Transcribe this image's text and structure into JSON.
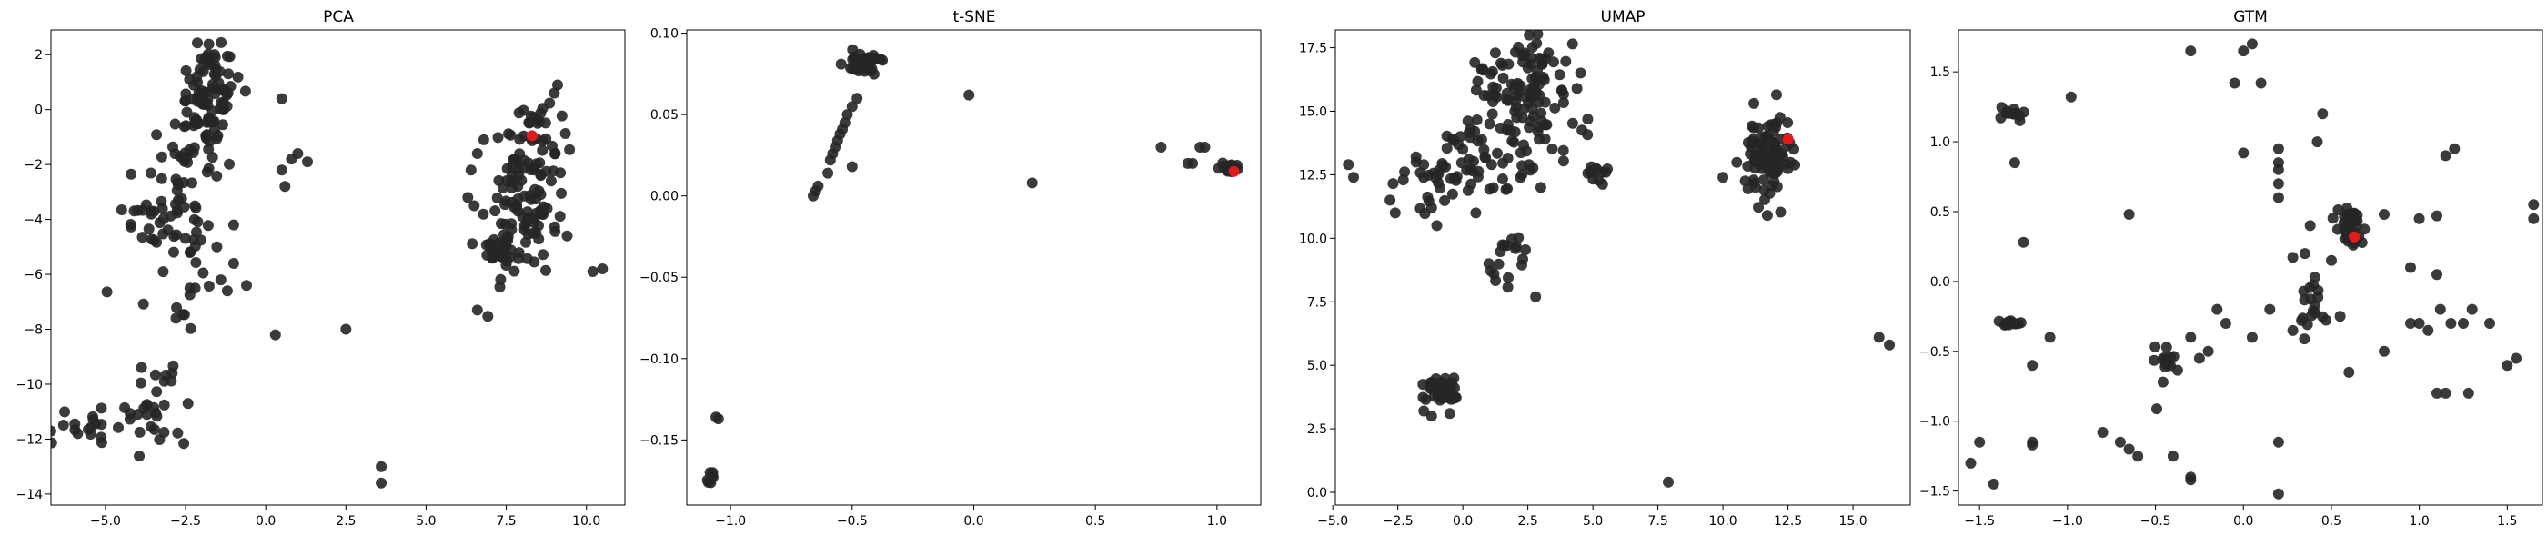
{
  "chart_data": [
    {
      "type": "scatter",
      "title": "PCA",
      "xlim": [
        -6.7,
        11.2
      ],
      "ylim": [
        -14.4,
        2.9
      ],
      "xticks": [
        -5.0,
        -2.5,
        0.0,
        2.5,
        5.0,
        7.5,
        10.0
      ],
      "xtick_labels": [
        "−5.0",
        "−2.5",
        "0.0",
        "2.5",
        "5.0",
        "7.5",
        "10.0"
      ],
      "yticks": [
        2,
        0,
        -2,
        -4,
        -6,
        -8,
        -10,
        -12,
        -14
      ],
      "ytick_labels": [
        "2",
        "0",
        "−2",
        "−4",
        "−6",
        "−8",
        "−10",
        "−12",
        "−14"
      ],
      "point_color": "#262626",
      "highlight_color": "#e31a1c",
      "clusters": [
        {
          "cx": -1.8,
          "cy": 0.5,
          "sx": 0.5,
          "sy": 1.1,
          "n": 95
        },
        {
          "cx": -2.4,
          "cy": -1.9,
          "sx": 0.35,
          "sy": 0.7,
          "n": 14
        },
        {
          "cx": -3.0,
          "cy": -4.2,
          "sx": 0.75,
          "sy": 1.2,
          "n": 65
        },
        {
          "cx": 8.0,
          "cy": -3.8,
          "sx": 0.55,
          "sy": 1.3,
          "n": 95
        },
        {
          "cx": 8.6,
          "cy": -1.1,
          "sx": 0.4,
          "sy": 0.8,
          "n": 30
        },
        {
          "cx": 7.4,
          "cy": -5.0,
          "sx": 0.6,
          "sy": 0.25,
          "n": 30
        },
        {
          "cx": -3.5,
          "cy": -10.8,
          "sx": 0.5,
          "sy": 0.7,
          "n": 30
        },
        {
          "cx": -5.4,
          "cy": -11.6,
          "sx": 0.55,
          "sy": 0.4,
          "n": 18
        }
      ],
      "points": [
        [
          0.5,
          0.4
        ],
        [
          0.5,
          -2.2
        ],
        [
          0.6,
          -2.8
        ],
        [
          1.0,
          -1.6
        ],
        [
          0.8,
          -1.8
        ],
        [
          1.3,
          -1.9
        ],
        [
          6.8,
          -1.1
        ],
        [
          6.6,
          -1.6
        ],
        [
          6.4,
          -2.2
        ],
        [
          6.3,
          -3.2
        ],
        [
          6.5,
          -3.5
        ],
        [
          6.6,
          -7.3
        ],
        [
          0.3,
          -8.2
        ],
        [
          2.5,
          -8.0
        ],
        [
          3.6,
          -13.0
        ],
        [
          3.6,
          -13.6
        ],
        [
          10.2,
          -5.9
        ],
        [
          10.5,
          -5.8
        ],
        [
          9.1,
          0.9
        ],
        [
          9.0,
          0.6
        ],
        [
          9.4,
          -4.6
        ],
        [
          8.9,
          -2.6
        ],
        [
          -1.0,
          -4.2
        ],
        [
          -1.2,
          -6.6
        ],
        [
          -0.6,
          -6.4
        ],
        [
          -1.0,
          -5.6
        ],
        [
          -2.2,
          -6.5
        ],
        [
          -1.4,
          -6.2
        ],
        [
          -2.8,
          -7.6
        ]
      ],
      "highlight": [
        [
          8.3,
          -0.95
        ]
      ]
    },
    {
      "type": "scatter",
      "title": "t-SNE",
      "xlim": [
        -1.18,
        1.18
      ],
      "ylim": [
        -0.19,
        0.102
      ],
      "xticks": [
        -1.0,
        -0.5,
        0.0,
        0.5,
        1.0
      ],
      "xtick_labels": [
        "−1.0",
        "−0.5",
        "0.0",
        "0.5",
        "1.0"
      ],
      "yticks": [
        0.1,
        0.05,
        0.0,
        -0.05,
        -0.1,
        -0.15
      ],
      "ytick_labels": [
        "0.10",
        "0.05",
        "0.00",
        "−0.05",
        "−0.10",
        "−0.15"
      ],
      "point_color": "#262626",
      "highlight_color": "#e31a1c",
      "clusters": [
        {
          "cx": -0.45,
          "cy": 0.082,
          "sx": 0.04,
          "sy": 0.004,
          "n": 50
        },
        {
          "cx": 1.05,
          "cy": 0.017,
          "sx": 0.02,
          "sy": 0.0015,
          "n": 18
        },
        {
          "cx": -1.08,
          "cy": -0.174,
          "sx": 0.01,
          "sy": 0.0015,
          "n": 10
        }
      ],
      "points": [
        [
          -0.66,
          0.0
        ],
        [
          -0.65,
          0.003
        ],
        [
          -0.64,
          0.006
        ],
        [
          -0.6,
          0.014
        ],
        [
          -0.59,
          0.022
        ],
        [
          -0.58,
          0.026
        ],
        [
          -0.57,
          0.03
        ],
        [
          -0.56,
          0.034
        ],
        [
          -0.55,
          0.038
        ],
        [
          -0.54,
          0.041
        ],
        [
          -0.53,
          0.045
        ],
        [
          -0.52,
          0.05
        ],
        [
          -0.5,
          0.055
        ],
        [
          -0.48,
          0.06
        ],
        [
          -0.5,
          0.018
        ],
        [
          -0.02,
          0.062
        ],
        [
          0.24,
          0.008
        ],
        [
          0.77,
          0.03
        ],
        [
          0.88,
          0.02
        ],
        [
          0.9,
          0.02
        ],
        [
          0.93,
          0.03
        ],
        [
          0.95,
          0.03
        ],
        [
          -1.06,
          -0.136
        ],
        [
          -1.05,
          -0.137
        ]
      ],
      "highlight": [
        [
          1.07,
          0.015
        ]
      ]
    },
    {
      "type": "scatter",
      "title": "UMAP",
      "xlim": [
        -4.9,
        17.2
      ],
      "ylim": [
        -0.5,
        18.2
      ],
      "xticks": [
        -5.0,
        -2.5,
        0.0,
        2.5,
        5.0,
        7.5,
        10.0,
        12.5,
        15.0
      ],
      "xtick_labels": [
        "−5.0",
        "−2.5",
        "0.0",
        "2.5",
        "5.0",
        "7.5",
        "10.0",
        "12.5",
        "15.0"
      ],
      "yticks": [
        17.5,
        15.0,
        12.5,
        10.0,
        7.5,
        5.0,
        2.5,
        0.0
      ],
      "ytick_labels": [
        "17.5",
        "15.0",
        "12.5",
        "10.0",
        "7.5",
        "5.0",
        "2.5",
        "0.0"
      ],
      "point_color": "#262626",
      "highlight_color": "#e31a1c",
      "clusters": [
        {
          "cx": 2.2,
          "cy": 15.8,
          "sx": 0.9,
          "sy": 1.1,
          "n": 110
        },
        {
          "cx": 1.4,
          "cy": 13.0,
          "sx": 1.2,
          "sy": 0.9,
          "n": 45
        },
        {
          "cx": -1.0,
          "cy": 12.2,
          "sx": 0.9,
          "sy": 0.9,
          "n": 30
        },
        {
          "cx": 1.7,
          "cy": 9.5,
          "sx": 0.5,
          "sy": 0.7,
          "n": 16
        },
        {
          "cx": 11.7,
          "cy": 13.2,
          "sx": 0.5,
          "sy": 1.0,
          "n": 95
        },
        {
          "cx": -0.8,
          "cy": 3.9,
          "sx": 0.35,
          "sy": 0.3,
          "n": 40
        },
        {
          "cx": 4.9,
          "cy": 12.8,
          "sx": 0.45,
          "sy": 0.35,
          "n": 12
        }
      ],
      "points": [
        [
          -4.4,
          12.9
        ],
        [
          -4.2,
          12.4
        ],
        [
          -2.8,
          11.5
        ],
        [
          -2.6,
          11.0
        ],
        [
          -1.8,
          13.0
        ],
        [
          -1.5,
          12.9
        ],
        [
          -1.2,
          11.2
        ],
        [
          -1.0,
          10.5
        ],
        [
          0.0,
          13.5
        ],
        [
          0.5,
          11.0
        ],
        [
          2.8,
          7.7
        ],
        [
          7.9,
          0.4
        ],
        [
          16.0,
          6.1
        ],
        [
          16.4,
          5.8
        ],
        [
          5.5,
          12.6
        ],
        [
          10.0,
          12.4
        ],
        [
          -1.5,
          3.2
        ],
        [
          -1.2,
          3.0
        ],
        [
          -0.5,
          3.1
        ],
        [
          -1.8,
          13.2
        ],
        [
          3.0,
          12.0
        ],
        [
          1.2,
          8.6
        ],
        [
          1.0,
          9.0
        ],
        [
          0.3,
          14.3
        ]
      ],
      "highlight": [
        [
          12.5,
          13.9
        ]
      ]
    },
    {
      "type": "scatter",
      "title": "GTM",
      "xlim": [
        -1.62,
        1.7
      ],
      "ylim": [
        -1.6,
        1.8
      ],
      "xticks": [
        -1.5,
        -1.0,
        -0.5,
        0.0,
        0.5,
        1.0,
        1.5
      ],
      "xtick_labels": [
        "−1.5",
        "−1.0",
        "−0.5",
        "0.0",
        "0.5",
        "1.0",
        "1.5"
      ],
      "yticks": [
        1.5,
        1.0,
        0.5,
        0.0,
        -0.5,
        -1.0,
        -1.5
      ],
      "ytick_labels": [
        "1.5",
        "1.0",
        "0.5",
        "0.0",
        "−0.5",
        "−1.0",
        "−1.5"
      ],
      "point_color": "#262626",
      "highlight_color": "#e31a1c",
      "clusters": [
        {
          "cx": 0.6,
          "cy": 0.42,
          "sx": 0.04,
          "sy": 0.05,
          "n": 30
        },
        {
          "cx": 0.62,
          "cy": 0.3,
          "sx": 0.03,
          "sy": 0.03,
          "n": 12
        },
        {
          "cx": -1.33,
          "cy": 1.2,
          "sx": 0.04,
          "sy": 0.04,
          "n": 12
        },
        {
          "cx": -1.32,
          "cy": -0.3,
          "sx": 0.05,
          "sy": 0.01,
          "n": 12
        },
        {
          "cx": 0.38,
          "cy": -0.2,
          "sx": 0.05,
          "sy": 0.15,
          "n": 20
        },
        {
          "cx": -0.42,
          "cy": -0.6,
          "sx": 0.04,
          "sy": 0.1,
          "n": 14
        }
      ],
      "points": [
        [
          -1.55,
          -1.3
        ],
        [
          -1.5,
          -1.15
        ],
        [
          -1.42,
          -1.45
        ],
        [
          -1.2,
          -1.15
        ],
        [
          -1.2,
          -1.17
        ],
        [
          -1.1,
          -0.4
        ],
        [
          -1.2,
          -0.6
        ],
        [
          -1.25,
          0.28
        ],
        [
          -1.3,
          0.85
        ],
        [
          -0.98,
          1.32
        ],
        [
          -0.65,
          0.48
        ],
        [
          -0.3,
          1.65
        ],
        [
          -0.05,
          1.42
        ],
        [
          0.0,
          1.65
        ],
        [
          0.05,
          1.7
        ],
        [
          0.1,
          1.42
        ],
        [
          0.2,
          0.95
        ],
        [
          0.2,
          0.85
        ],
        [
          0.2,
          0.8
        ],
        [
          0.2,
          0.7
        ],
        [
          0.2,
          0.6
        ],
        [
          0.0,
          0.92
        ],
        [
          0.42,
          1.0
        ],
        [
          0.45,
          1.2
        ],
        [
          0.38,
          0.4
        ],
        [
          0.35,
          0.2
        ],
        [
          -0.2,
          -0.5
        ],
        [
          -0.25,
          -0.55
        ],
        [
          -0.3,
          -0.4
        ],
        [
          -0.8,
          -1.08
        ],
        [
          -0.7,
          -1.15
        ],
        [
          -0.65,
          -1.2
        ],
        [
          -0.6,
          -1.25
        ],
        [
          -0.4,
          -1.25
        ],
        [
          -0.3,
          -1.4
        ],
        [
          -0.3,
          -1.42
        ],
        [
          0.2,
          -1.52
        ],
        [
          0.2,
          -1.15
        ],
        [
          0.05,
          -0.4
        ],
        [
          -0.1,
          -0.3
        ],
        [
          -0.15,
          -0.2
        ],
        [
          0.15,
          -0.2
        ],
        [
          1.1,
          0.47
        ],
        [
          1.0,
          0.45
        ],
        [
          1.15,
          0.9
        ],
        [
          1.2,
          0.95
        ],
        [
          1.1,
          0.05
        ],
        [
          0.95,
          0.1
        ],
        [
          0.8,
          -0.5
        ],
        [
          0.95,
          -0.3
        ],
        [
          1.0,
          -0.3
        ],
        [
          1.05,
          -0.35
        ],
        [
          1.12,
          -0.2
        ],
        [
          1.18,
          -0.3
        ],
        [
          1.25,
          -0.3
        ],
        [
          1.3,
          -0.2
        ],
        [
          1.4,
          -0.3
        ],
        [
          1.5,
          -0.6
        ],
        [
          1.55,
          -0.55
        ],
        [
          1.65,
          0.45
        ],
        [
          1.65,
          0.55
        ],
        [
          1.1,
          -0.8
        ],
        [
          1.15,
          -0.8
        ],
        [
          1.28,
          -0.8
        ],
        [
          0.6,
          -0.65
        ],
        [
          0.8,
          0.48
        ],
        [
          0.5,
          0.15
        ],
        [
          0.55,
          -0.25
        ]
      ],
      "highlight": [
        [
          0.63,
          0.32
        ]
      ]
    }
  ]
}
